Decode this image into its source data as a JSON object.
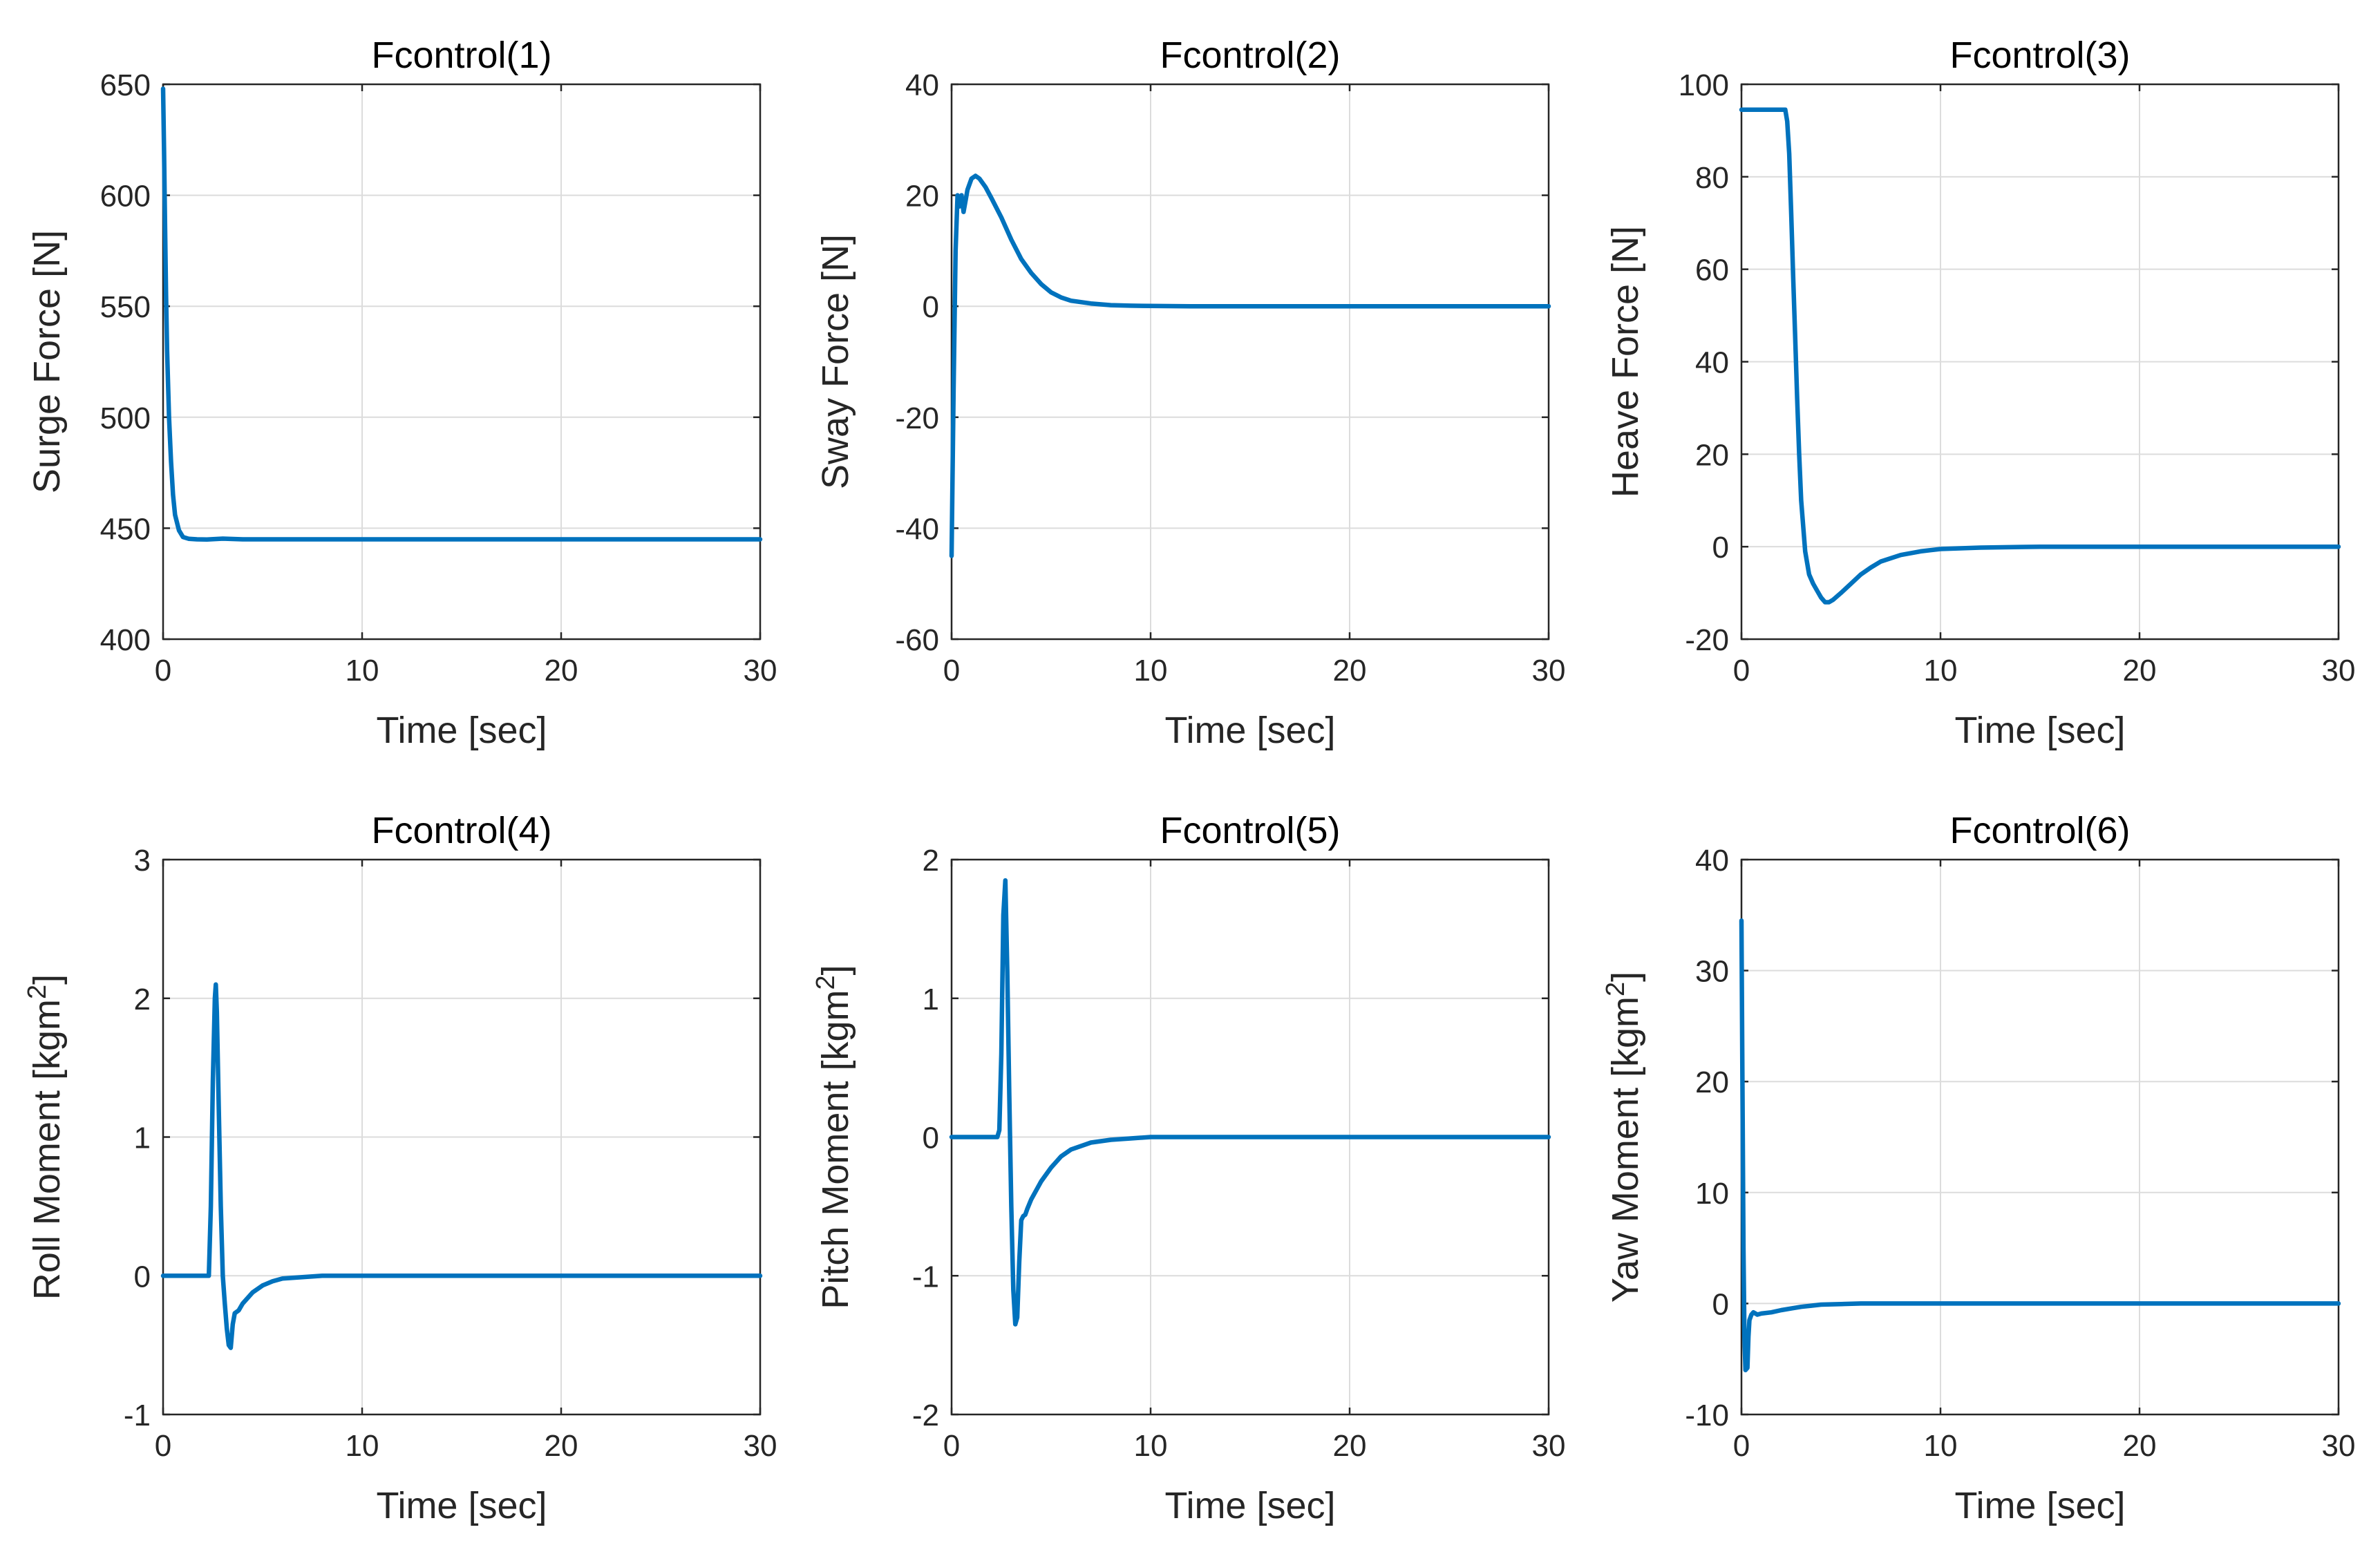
{
  "figure": {
    "line_color": "#0072BD"
  },
  "chart_data": [
    {
      "type": "line",
      "title": "Fcontrol(1)",
      "xlabel": "Time [sec]",
      "ylabel": "Surge Force [N]",
      "ylabel_sup": "",
      "ylabel_tail": "",
      "xlim": [
        0,
        30
      ],
      "ylim": [
        400,
        650
      ],
      "xticks": [
        0,
        10,
        20,
        30
      ],
      "yticks": [
        400,
        450,
        500,
        550,
        600,
        650
      ],
      "grid": true,
      "series": [
        {
          "name": "Fcontrol(1)",
          "x": [
            0,
            0.05,
            0.1,
            0.15,
            0.2,
            0.3,
            0.4,
            0.5,
            0.6,
            0.8,
            1.0,
            1.3,
            1.7,
            2.2,
            3.0,
            4.0,
            6.0,
            10,
            15,
            20,
            25,
            30
          ],
          "y": [
            648,
            620,
            585,
            555,
            530,
            500,
            480,
            465,
            456,
            449,
            446,
            445.2,
            445,
            444.9,
            445.3,
            445,
            445,
            445,
            445,
            445,
            445,
            445
          ]
        }
      ]
    },
    {
      "type": "line",
      "title": "Fcontrol(2)",
      "xlabel": "Time [sec]",
      "ylabel": "Sway Force [N]",
      "ylabel_sup": "",
      "ylabel_tail": "",
      "xlim": [
        0,
        30
      ],
      "ylim": [
        -60,
        40
      ],
      "xticks": [
        0,
        10,
        20,
        30
      ],
      "yticks": [
        -60,
        -40,
        -20,
        0,
        20,
        40
      ],
      "grid": true,
      "series": [
        {
          "name": "Fcontrol(2)",
          "x": [
            0,
            0.1,
            0.2,
            0.3,
            0.4,
            0.5,
            0.6,
            0.7,
            0.8,
            1.0,
            1.2,
            1.4,
            1.7,
            2.0,
            2.5,
            3.0,
            3.5,
            4.0,
            4.5,
            5.0,
            5.5,
            6.0,
            7.0,
            8.0,
            9.0,
            10,
            12,
            15,
            20,
            25,
            30
          ],
          "y": [
            -45,
            -15,
            10,
            20,
            18,
            20,
            17,
            19,
            21,
            23,
            23.5,
            23,
            21.5,
            19.5,
            16,
            12,
            8.5,
            6,
            4,
            2.5,
            1.6,
            1,
            0.5,
            0.2,
            0.1,
            0.05,
            0,
            0,
            0,
            0,
            0
          ]
        }
      ]
    },
    {
      "type": "line",
      "title": "Fcontrol(3)",
      "xlabel": "Time [sec]",
      "ylabel": "Heave Force [N]",
      "ylabel_sup": "",
      "ylabel_tail": "",
      "xlim": [
        0,
        30
      ],
      "ylim": [
        -20,
        100
      ],
      "xticks": [
        0,
        10,
        20,
        30
      ],
      "yticks": [
        -20,
        0,
        20,
        40,
        60,
        80,
        100
      ],
      "grid": true,
      "series": [
        {
          "name": "Fcontrol(3)",
          "x": [
            0,
            2.2,
            2.3,
            2.4,
            2.5,
            2.6,
            2.7,
            2.8,
            2.9,
            3.0,
            3.2,
            3.4,
            3.6,
            3.8,
            4.0,
            4.2,
            4.4,
            4.6,
            5.0,
            5.5,
            6.0,
            6.5,
            7.0,
            8.0,
            9.0,
            10,
            12,
            15,
            20,
            25,
            30
          ],
          "y": [
            94.5,
            94.5,
            92,
            85,
            72,
            58,
            45,
            32,
            20,
            10,
            -1,
            -6,
            -8,
            -9.5,
            -11,
            -12,
            -12,
            -11.5,
            -10,
            -8,
            -6,
            -4.5,
            -3.2,
            -1.8,
            -1,
            -0.5,
            -0.2,
            0,
            0,
            0,
            0
          ]
        }
      ]
    },
    {
      "type": "line",
      "title": "Fcontrol(4)",
      "xlabel": "Time [sec]",
      "ylabel": "Roll Moment [kgm",
      "ylabel_sup": "2",
      "ylabel_tail": "]",
      "xlim": [
        0,
        30
      ],
      "ylim": [
        -1,
        3
      ],
      "xticks": [
        0,
        10,
        20,
        30
      ],
      "yticks": [
        -1,
        0,
        1,
        2,
        3
      ],
      "grid": true,
      "series": [
        {
          "name": "Fcontrol(4)",
          "x": [
            0,
            2.3,
            2.4,
            2.5,
            2.6,
            2.65,
            2.7,
            2.8,
            2.9,
            3.0,
            3.1,
            3.2,
            3.3,
            3.4,
            3.5,
            3.6,
            3.7,
            3.8,
            4.0,
            4.5,
            5.0,
            5.5,
            6.0,
            7.0,
            8.0,
            10,
            12,
            15,
            20,
            25,
            30
          ],
          "y": [
            0,
            0,
            0.5,
            1.4,
            2.0,
            2.1,
            1.9,
            1.2,
            0.5,
            0,
            -0.2,
            -0.38,
            -0.5,
            -0.52,
            -0.35,
            -0.27,
            -0.26,
            -0.25,
            -0.2,
            -0.12,
            -0.07,
            -0.04,
            -0.02,
            -0.01,
            0,
            0,
            0,
            0,
            0,
            0,
            0
          ]
        }
      ]
    },
    {
      "type": "line",
      "title": "Fcontrol(5)",
      "xlabel": "Time [sec]",
      "ylabel": "Pitch Moment [kgm",
      "ylabel_sup": "2",
      "ylabel_tail": "]",
      "xlim": [
        0,
        30
      ],
      "ylim": [
        -2,
        2
      ],
      "xticks": [
        0,
        10,
        20,
        30
      ],
      "yticks": [
        -2,
        -1,
        0,
        1,
        2
      ],
      "grid": true,
      "series": [
        {
          "name": "Fcontrol(5)",
          "x": [
            0,
            2.3,
            2.4,
            2.5,
            2.6,
            2.7,
            2.8,
            2.9,
            3.0,
            3.1,
            3.2,
            3.3,
            3.4,
            3.5,
            3.6,
            3.7,
            3.8,
            4.0,
            4.5,
            5.0,
            5.5,
            6.0,
            7.0,
            8.0,
            9.0,
            10,
            12,
            15,
            20,
            25,
            30
          ],
          "y": [
            0,
            0,
            0.05,
            0.6,
            1.6,
            1.85,
            1.2,
            0.3,
            -0.5,
            -1.1,
            -1.35,
            -1.3,
            -0.9,
            -0.6,
            -0.57,
            -0.56,
            -0.52,
            -0.45,
            -0.32,
            -0.22,
            -0.14,
            -0.09,
            -0.04,
            -0.02,
            -0.01,
            0,
            0,
            0,
            0,
            0,
            0
          ]
        }
      ]
    },
    {
      "type": "line",
      "title": "Fcontrol(6)",
      "xlabel": "Time [sec]",
      "ylabel": "Yaw Moment [kgm",
      "ylabel_sup": "2",
      "ylabel_tail": "]",
      "xlim": [
        0,
        30
      ],
      "ylim": [
        -10,
        40
      ],
      "xticks": [
        0,
        10,
        20,
        30
      ],
      "yticks": [
        -10,
        0,
        10,
        20,
        30,
        40
      ],
      "grid": true,
      "series": [
        {
          "name": "Fcontrol(6)",
          "x": [
            0,
            0.05,
            0.1,
            0.15,
            0.2,
            0.3,
            0.35,
            0.4,
            0.5,
            0.6,
            0.8,
            1.0,
            1.5,
            2.0,
            2.5,
            3.0,
            3.5,
            4.0,
            5.0,
            6.0,
            8.0,
            10,
            15,
            20,
            25,
            30
          ],
          "y": [
            34.5,
            20,
            5,
            -3,
            -6,
            -5.8,
            -3,
            -1.5,
            -1,
            -0.8,
            -1,
            -0.9,
            -0.8,
            -0.6,
            -0.45,
            -0.3,
            -0.2,
            -0.1,
            -0.05,
            0,
            0,
            0,
            0,
            0,
            0,
            0
          ]
        }
      ]
    }
  ]
}
